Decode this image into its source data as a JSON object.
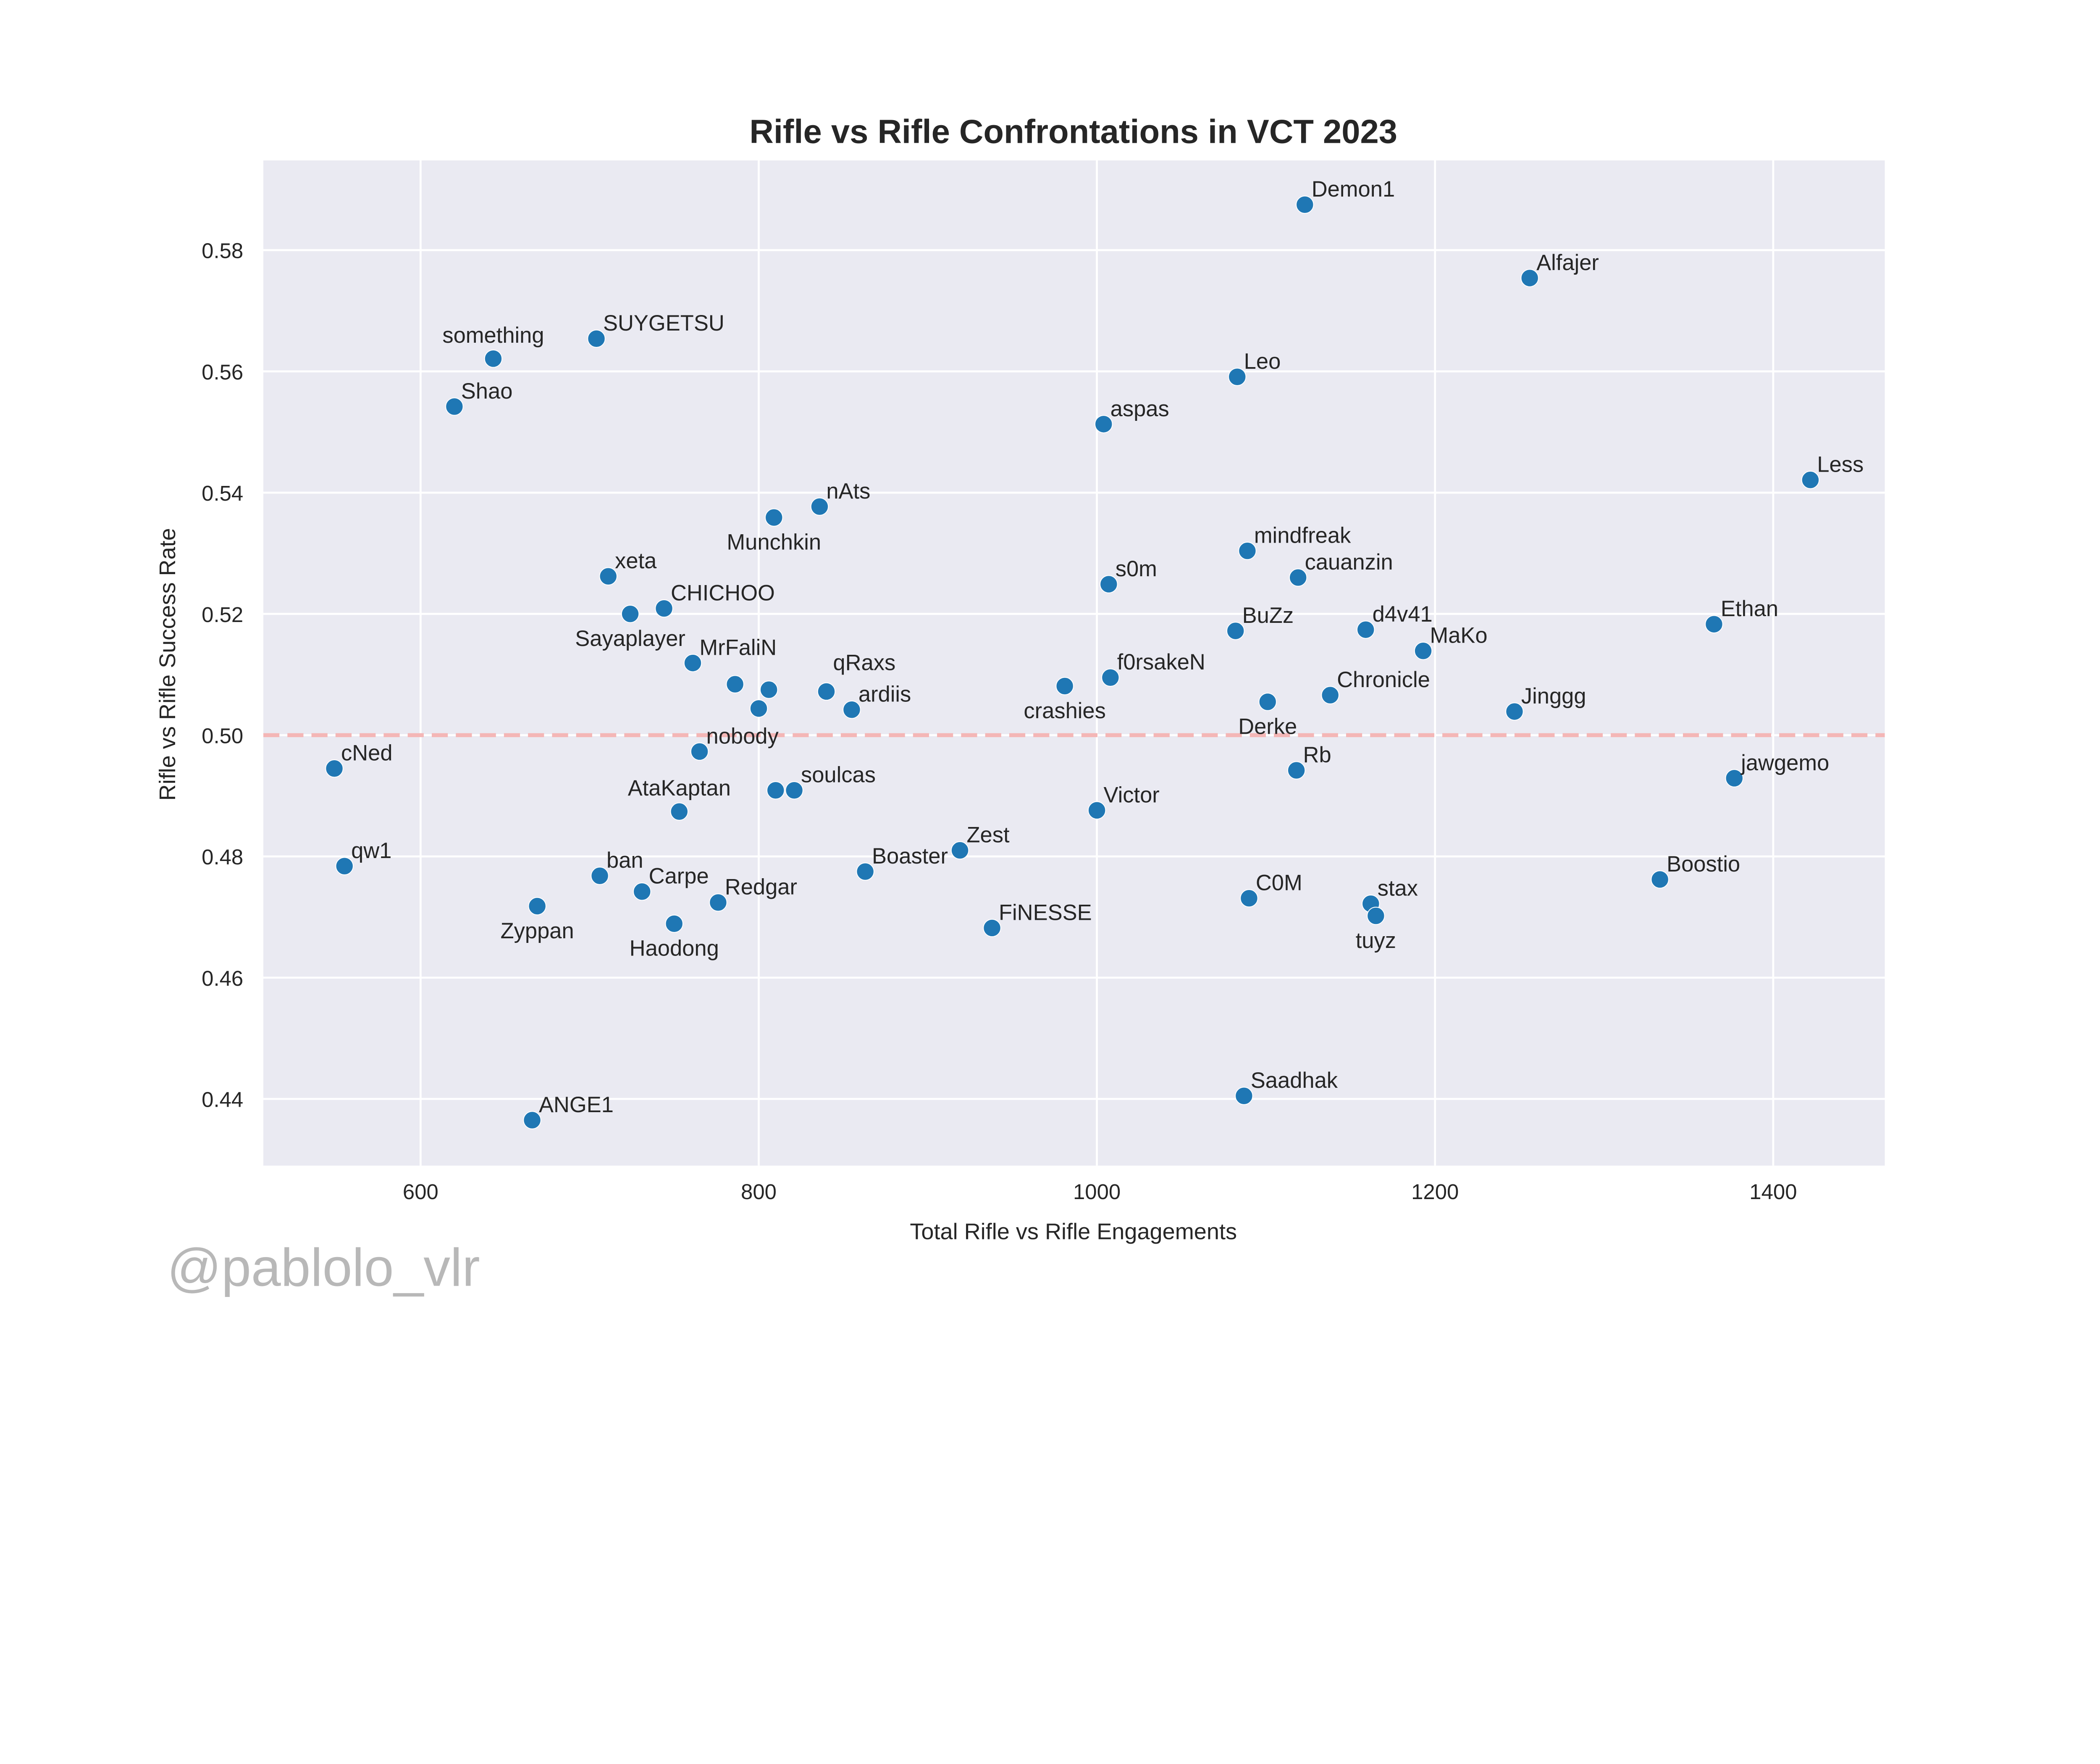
{
  "chart_data": {
    "type": "scatter",
    "title": "Rifle vs Rifle Confrontations in VCT 2023",
    "xlabel": "Total Rifle vs Rifle Engagements",
    "ylabel": "Rifle vs Rifle Success Rate",
    "xlim": [
      507,
      1466
    ],
    "ylim": [
      0.429,
      0.5948
    ],
    "xticks": [
      600,
      800,
      1000,
      1200,
      1400
    ],
    "yticks": [
      0.44,
      0.46,
      0.48,
      0.5,
      0.52,
      0.54,
      0.56,
      0.58
    ],
    "ytick_labels": [
      "0.44",
      "0.46",
      "0.48",
      "0.50",
      "0.52",
      "0.54",
      "0.56",
      "0.58"
    ],
    "grid": true,
    "reference_line": {
      "y": 0.5,
      "style": "dashed",
      "color": "#f4b6b6"
    },
    "point_color": "#1f77b4",
    "background": "#eaeaf2",
    "watermark": "@pablolo_vlr",
    "points": [
      {
        "label": "Demon1",
        "x": 1123,
        "y": 0.5875
      },
      {
        "label": "Alfajer",
        "x": 1256,
        "y": 0.5754
      },
      {
        "label": "SUYGETSU",
        "x": 704,
        "y": 0.5654
      },
      {
        "label": "something",
        "x": 643,
        "y": 0.5621
      },
      {
        "label": "Leo",
        "x": 1083,
        "y": 0.5591
      },
      {
        "label": "Shao",
        "x": 620,
        "y": 0.5542
      },
      {
        "label": "aspas",
        "x": 1004,
        "y": 0.5513
      },
      {
        "label": "Less",
        "x": 1422,
        "y": 0.5421
      },
      {
        "label": "nAts",
        "x": 836,
        "y": 0.5377
      },
      {
        "label": "Munchkin",
        "x": 809,
        "y": 0.5359
      },
      {
        "label": "mindfreak",
        "x": 1089,
        "y": 0.5304
      },
      {
        "label": "xeta",
        "x": 711,
        "y": 0.5262
      },
      {
        "label": "cauanzin",
        "x": 1119,
        "y": 0.526
      },
      {
        "label": "s0m",
        "x": 1007,
        "y": 0.5249
      },
      {
        "label": "CHICHOO",
        "x": 744,
        "y": 0.5209
      },
      {
        "label": "Sayaplayer",
        "x": 724,
        "y": 0.52
      },
      {
        "label": "Ethan",
        "x": 1365,
        "y": 0.5183
      },
      {
        "label": "BuZz",
        "x": 1082,
        "y": 0.5172
      },
      {
        "label": "d4v41",
        "x": 1159,
        "y": 0.5174
      },
      {
        "label": "MaKo",
        "x": 1193,
        "y": 0.5139
      },
      {
        "label": "MrFaliN",
        "x": 761,
        "y": 0.5119
      },
      {
        "label": "f0rsakeN",
        "x": 1008,
        "y": 0.5095
      },
      {
        "label": "crashies",
        "x": 981,
        "y": 0.5081
      },
      {
        "label": "",
        "x": 786,
        "y": 0.5084
      },
      {
        "label": "",
        "x": 806,
        "y": 0.5075
      },
      {
        "label": "qRaxs",
        "x": 840,
        "y": 0.5072
      },
      {
        "label": "Chronicle",
        "x": 1138,
        "y": 0.5066
      },
      {
        "label": "Derke",
        "x": 1101,
        "y": 0.5055
      },
      {
        "label": "",
        "x": 800,
        "y": 0.5044
      },
      {
        "label": "ardiis",
        "x": 855,
        "y": 0.5042
      },
      {
        "label": "Jinggg",
        "x": 1247,
        "y": 0.5039
      },
      {
        "label": "nobody",
        "x": 765,
        "y": 0.4973
      },
      {
        "label": "cNed",
        "x": 549,
        "y": 0.4945
      },
      {
        "label": "Rb",
        "x": 1118,
        "y": 0.4942
      },
      {
        "label": "jawgemo",
        "x": 1377,
        "y": 0.4929
      },
      {
        "label": "soulcas",
        "x": 821,
        "y": 0.4909
      },
      {
        "label": "",
        "x": 810,
        "y": 0.4909
      },
      {
        "label": "AtaKaptan",
        "x": 753,
        "y": 0.4874
      },
      {
        "label": "Victor",
        "x": 1000,
        "y": 0.4876
      },
      {
        "label": "Zest",
        "x": 919,
        "y": 0.481
      },
      {
        "label": "qw1",
        "x": 555,
        "y": 0.4784
      },
      {
        "label": "Boaster",
        "x": 863,
        "y": 0.4775
      },
      {
        "label": "ban",
        "x": 706,
        "y": 0.4768
      },
      {
        "label": "Boostio",
        "x": 1333,
        "y": 0.4762
      },
      {
        "label": "Carpe",
        "x": 731,
        "y": 0.4742
      },
      {
        "label": "C0M",
        "x": 1090,
        "y": 0.4731
      },
      {
        "label": "Redgar",
        "x": 776,
        "y": 0.4724
      },
      {
        "label": "stax",
        "x": 1162,
        "y": 0.4722
      },
      {
        "label": "Zyppan",
        "x": 669,
        "y": 0.4718
      },
      {
        "label": "tuyz",
        "x": 1165,
        "y": 0.4702
      },
      {
        "label": "Haodong",
        "x": 750,
        "y": 0.4689
      },
      {
        "label": "FiNESSE",
        "x": 938,
        "y": 0.4682
      },
      {
        "label": "Saadhak",
        "x": 1087,
        "y": 0.4405
      },
      {
        "label": "ANGE1",
        "x": 666,
        "y": 0.4365
      }
    ]
  }
}
